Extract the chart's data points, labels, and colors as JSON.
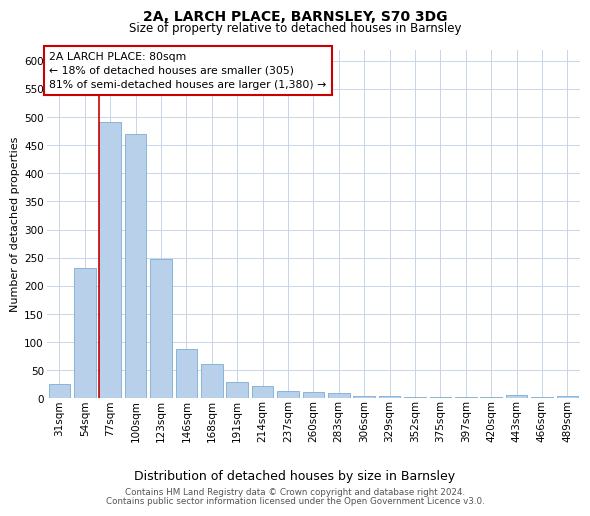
{
  "title_line1": "2A, LARCH PLACE, BARNSLEY, S70 3DG",
  "title_line2": "Size of property relative to detached houses in Barnsley",
  "xlabel": "Distribution of detached houses by size in Barnsley",
  "ylabel": "Number of detached properties",
  "categories": [
    "31sqm",
    "54sqm",
    "77sqm",
    "100sqm",
    "123sqm",
    "146sqm",
    "168sqm",
    "191sqm",
    "214sqm",
    "237sqm",
    "260sqm",
    "283sqm",
    "306sqm",
    "329sqm",
    "352sqm",
    "375sqm",
    "397sqm",
    "420sqm",
    "443sqm",
    "466sqm",
    "489sqm"
  ],
  "values": [
    25,
    232,
    492,
    470,
    248,
    88,
    62,
    30,
    22,
    13,
    11,
    10,
    5,
    4,
    3,
    3,
    2,
    3,
    6,
    2,
    4
  ],
  "bar_color": "#b8d0ea",
  "bar_edge_color": "#7aadd4",
  "vline_index": 2,
  "vline_color": "#cc0000",
  "annotation_line1": "2A LARCH PLACE: 80sqm",
  "annotation_line2": "← 18% of detached houses are smaller (305)",
  "annotation_line3": "81% of semi-detached houses are larger (1,380) →",
  "annotation_box_edge_color": "#cc0000",
  "ylim": [
    0,
    620
  ],
  "yticks": [
    0,
    50,
    100,
    150,
    200,
    250,
    300,
    350,
    400,
    450,
    500,
    550,
    600
  ],
  "background_color": "#ffffff",
  "grid_color": "#c8d4e8",
  "footer_line1": "Contains HM Land Registry data © Crown copyright and database right 2024.",
  "footer_line2": "Contains public sector information licensed under the Open Government Licence v3.0.",
  "title_fontsize": 10,
  "subtitle_fontsize": 8.5,
  "ylabel_fontsize": 8,
  "xlabel_fontsize": 9,
  "tick_fontsize": 7.5,
  "annotation_fontsize": 7.8,
  "footer_fontsize": 6.3
}
